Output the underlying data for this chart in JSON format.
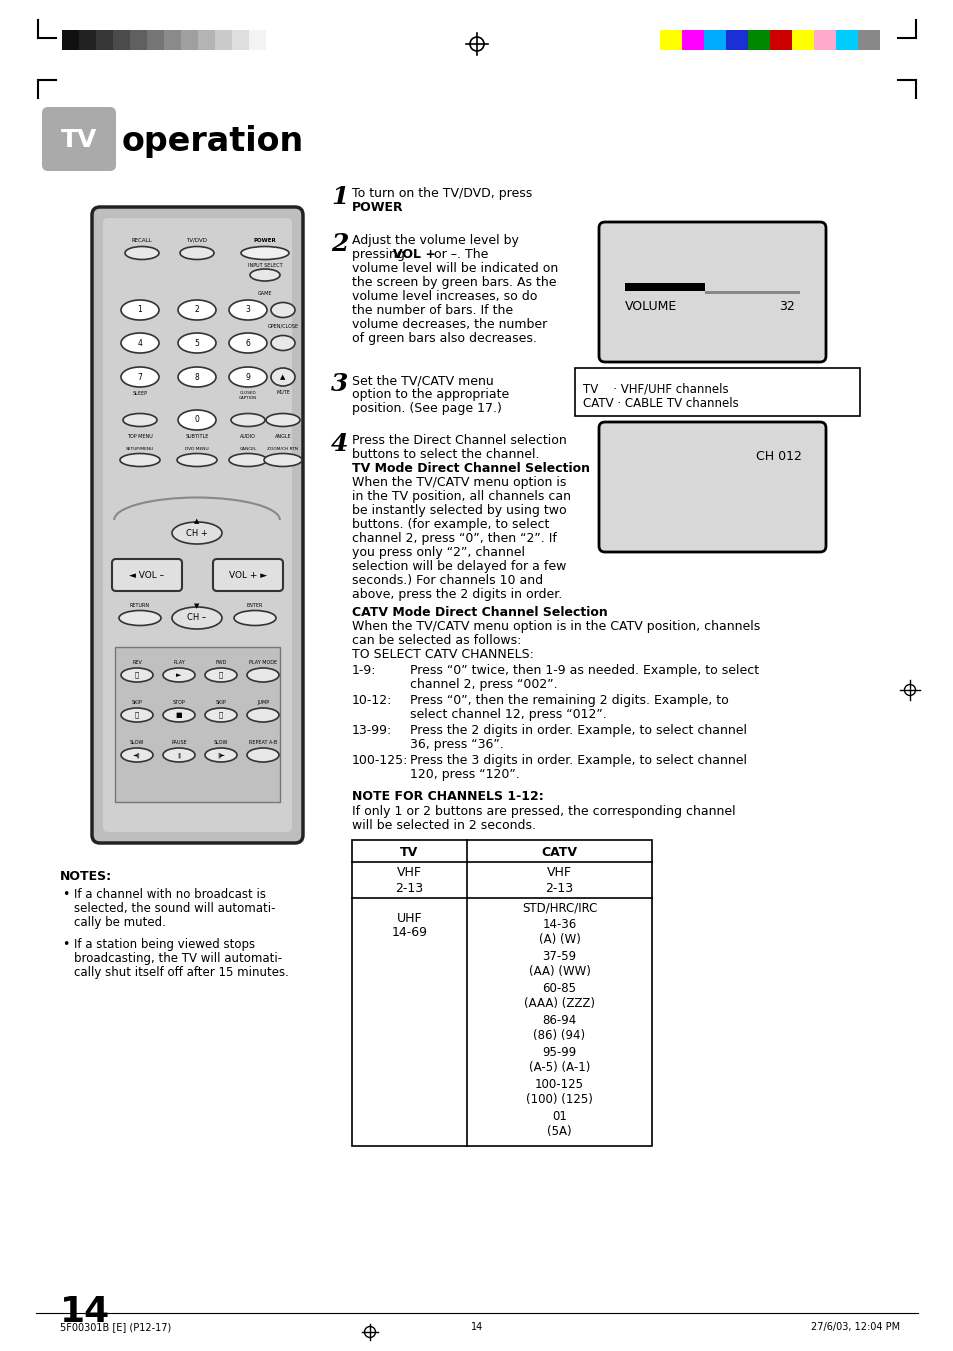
{
  "title_tv": "TV",
  "title_rest": " operation",
  "page_number": "14",
  "footer_left": "5F00301B [E] (P12-17)",
  "footer_center": "14",
  "footer_right": "27/6/03, 12:04 PM",
  "bg_color": "#ffffff",
  "remote_bg": "#c8c8c8",
  "remote_border": "#333333",
  "step1_line1": "To turn on the TV/DVD, press",
  "step1_bold": "POWER.",
  "step2_lines": [
    "Adjust the volume level by",
    "pressing ",
    "VOL +",
    " or –. The",
    "volume level will be indicated on",
    "the screen by green bars. As the",
    "volume level increases, so do",
    "the number of bars. If the",
    "volume decreases, the number",
    "of green bars also decreases."
  ],
  "step3_lines": [
    "Set the TV/CATV menu",
    "option to the appropriate",
    "position. (See page 17.)"
  ],
  "tv_catv_box": [
    "TV    · VHF/UHF channels",
    "CATV · CABLE TV channels"
  ],
  "step4_line1": "Press the Direct Channel selection",
  "step4_line2": "buttons to select the channel.",
  "step4_head1": "TV Mode Direct Channel Selection",
  "step4_body": [
    "When the TV/CATV menu option is",
    "in the TV position, all channels can",
    "be instantly selected by using two",
    "buttons. (for example, to select",
    "channel 2, press “0”, then “2”. If",
    "you press only “2”, channel",
    "selection will be delayed for a few",
    "seconds.) For channels 10 and",
    "above, press the 2 digits in order."
  ],
  "step4_head2": "CATV Mode Direct Channel Selection",
  "step4_body2": [
    "When the TV/CATV menu option is in the CATV position, channels",
    "can be selected as follows:",
    "TO SELECT CATV CHANNELS:"
  ],
  "catv_labels": [
    "1-9:",
    "10-12:",
    "13-99:",
    "100-125:"
  ],
  "catv_texts": [
    [
      "Press “0” twice, then 1-9 as needed. Example, to select",
      "channel 2, press “002”."
    ],
    [
      "Press “0”, then the remaining 2 digits. Example, to",
      "select channel 12, press “012”."
    ],
    [
      "Press the 2 digits in order. Example, to select channel",
      "36, press “36”."
    ],
    [
      "Press the 3 digits in order. Example, to select channel",
      "120, press “120”."
    ]
  ],
  "note_head": "NOTE FOR CHANNELS 1-12:",
  "note_body": [
    "If only 1 or 2 buttons are pressed, the corresponding channel",
    "will be selected in 2 seconds."
  ],
  "table_col1_rows": [
    [
      "VHF",
      "2-13"
    ],
    [
      "UHF",
      "14-69"
    ]
  ],
  "table_col2_rows": [
    [
      "VHF",
      "2-13"
    ],
    [
      "STD/HRC/IRC",
      "14-36",
      "(A) (W)",
      "37-59",
      "(AA) (WW)",
      "60-85",
      "(AAA) (ZZZ)",
      "86-94",
      "(86) (94)",
      "95-99",
      "(A-5) (A-1)",
      "100-125",
      "(100) (125)",
      "01",
      "(5A)"
    ]
  ],
  "notes_bullets": [
    [
      "If a channel with no broadcast is",
      "selected, the sound will automati-",
      "cally be muted."
    ],
    [
      "If a station being viewed stops",
      "broadcasting, the TV will automati-",
      "cally shut itself off after 15 minutes."
    ]
  ],
  "color_bars_left": [
    "#111111",
    "#222222",
    "#363636",
    "#4b4b4b",
    "#606060",
    "#757575",
    "#8a8a8a",
    "#9f9f9f",
    "#b4b4b4",
    "#c9c9c9",
    "#dedede",
    "#f3f3f3"
  ],
  "color_bars_right": [
    "#ffff00",
    "#ff00ff",
    "#00aaff",
    "#1a2fd4",
    "#008800",
    "#cc0000",
    "#ffff00",
    "#ffaacc",
    "#00ccff",
    "#888888"
  ]
}
